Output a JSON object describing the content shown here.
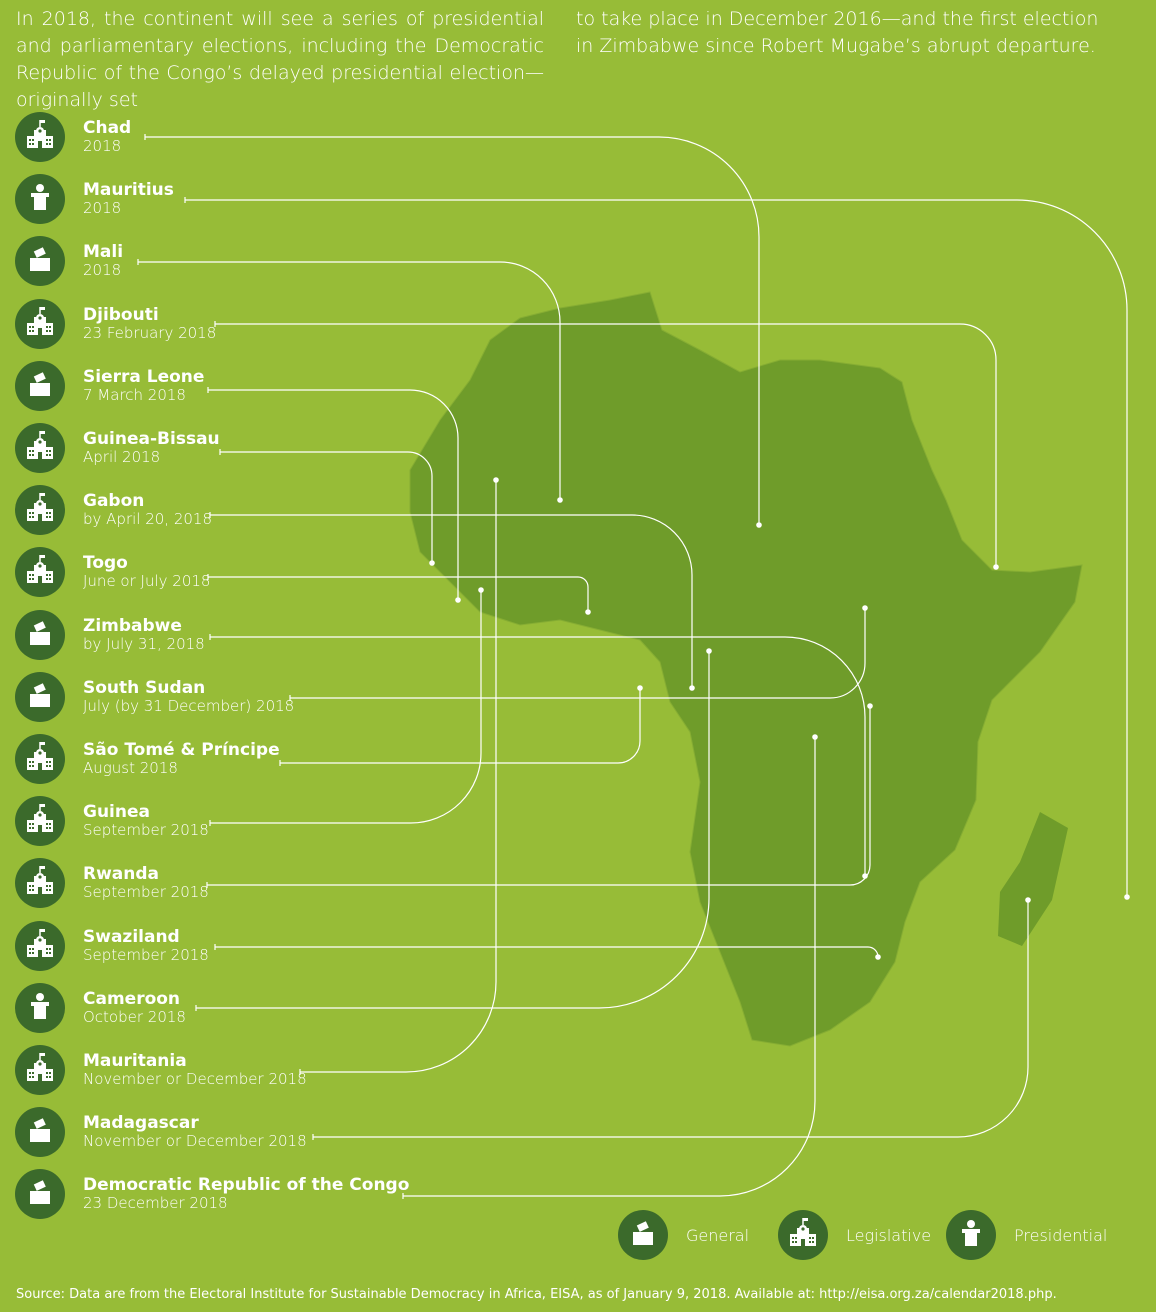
{
  "intro": {
    "col1": "In 2018, the continent will see a series of presidential and parliamentary elections, including the Democratic Republic of the Congo’s delayed presidential election—originally set",
    "col2": "to take place in December 2016—and the first election in Zimbabwe since Robert Mugabe’s abrupt departure."
  },
  "colors": {
    "background": "#97bc37",
    "icon_circle": "#3b6a2b",
    "map": "#6f9c2a",
    "lines": "#ffffff"
  },
  "elections": [
    {
      "country": "Chad",
      "date": "2018",
      "type": "legislative"
    },
    {
      "country": "Mauritius",
      "date": "2018",
      "type": "presidential"
    },
    {
      "country": "Mali",
      "date": "2018",
      "type": "general"
    },
    {
      "country": "Djibouti",
      "date": "23 February 2018",
      "type": "legislative"
    },
    {
      "country": "Sierra Leone",
      "date": "7 March 2018",
      "type": "general"
    },
    {
      "country": "Guinea-Bissau",
      "date": "April 2018",
      "type": "legislative"
    },
    {
      "country": "Gabon",
      "date": "by April 20, 2018",
      "type": "legislative"
    },
    {
      "country": "Togo",
      "date": "June or July 2018",
      "type": "legislative"
    },
    {
      "country": "Zimbabwe",
      "date": "by July 31, 2018",
      "type": "general"
    },
    {
      "country": "South Sudan",
      "date": "July (by 31 December) 2018",
      "type": "general"
    },
    {
      "country": "São Tomé & Príncipe",
      "date": "August 2018",
      "type": "legislative"
    },
    {
      "country": "Guinea",
      "date": "September 2018",
      "type": "legislative"
    },
    {
      "country": "Rwanda",
      "date": "September 2018",
      "type": "legislative"
    },
    {
      "country": "Swaziland",
      "date": "September 2018",
      "type": "legislative"
    },
    {
      "country": "Cameroon",
      "date": "October 2018",
      "type": "presidential"
    },
    {
      "country": "Mauritania",
      "date": "November or December 2018",
      "type": "legislative"
    },
    {
      "country": "Madagascar",
      "date": "November or December 2018",
      "type": "general"
    },
    {
      "country": "Democratic Republic of the Congo",
      "date": "23 December 2018",
      "type": "general"
    }
  ],
  "legend": [
    {
      "label": "General",
      "icon": "ballot-box-icon"
    },
    {
      "label": "Legislative",
      "icon": "building-icon"
    },
    {
      "label": "Presidential",
      "icon": "podium-icon"
    }
  ],
  "source": "Source: Data are from the Electoral Institute for Sustainable Democracy in Africa, EISA, as of January 9, 2018. Available at: http://eisa.org.za/calendar2018.php."
}
